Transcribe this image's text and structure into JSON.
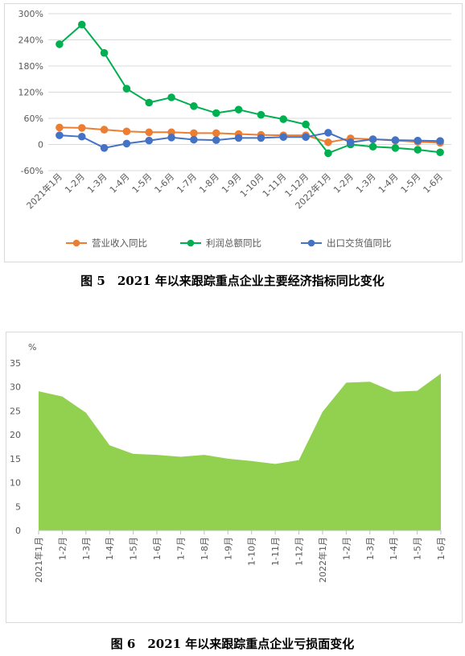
{
  "chart_data": [
    {
      "type": "line",
      "title": "",
      "caption": "图 5　2021 年以来跟踪重点企业主要经济指标同比变化",
      "categories": [
        "2021年1月",
        "1-2月",
        "1-3月",
        "1-4月",
        "1-5月",
        "1-6月",
        "1-7月",
        "1-8月",
        "1-9月",
        "1-10月",
        "1-11月",
        "1-12月",
        "2022年1月",
        "1-2月",
        "1-3月",
        "1-4月",
        "1-5月",
        "1-6月"
      ],
      "y_ticks": [
        "300%",
        "240%",
        "180%",
        "120%",
        "60%",
        "0",
        "-60%"
      ],
      "ylim": [
        -60,
        300
      ],
      "y_unit": "%",
      "grid": true,
      "legend_position": "bottom",
      "series": [
        {
          "name": "营业收入同比",
          "color": "#ED7D31",
          "values": [
            39,
            38,
            34,
            30,
            28,
            28,
            26,
            26,
            24,
            22,
            21,
            21,
            5,
            14,
            12,
            9,
            6,
            4
          ]
        },
        {
          "name": "利润总额同比",
          "color": "#00B050",
          "values": [
            230,
            275,
            210,
            128,
            96,
            108,
            88,
            72,
            80,
            68,
            58,
            46,
            -20,
            0,
            -5,
            -8,
            -12,
            -18
          ]
        },
        {
          "name": "出口交货值同比",
          "color": "#4472C4",
          "values": [
            21,
            18,
            -8,
            2,
            9,
            16,
            11,
            10,
            15,
            15,
            17,
            17,
            27,
            5,
            12,
            10,
            9,
            8
          ]
        }
      ]
    },
    {
      "type": "area",
      "title": "",
      "caption": "图 6　2021 年以来跟踪重点企业亏损面变化",
      "y_unit_label": "%",
      "categories": [
        "2021年1月",
        "1-2月",
        "1-3月",
        "1-4月",
        "1-5月",
        "1-6月",
        "1-7月",
        "1-8月",
        "1-9月",
        "1-10月",
        "1-11月",
        "1-12月",
        "2022年1月",
        "1-2月",
        "1-3月",
        "1-4月",
        "1-5月",
        "1-6月"
      ],
      "y_ticks": [
        "35",
        "30",
        "25",
        "20",
        "15",
        "10",
        "5",
        "0"
      ],
      "ylim": [
        0,
        35
      ],
      "grid": false,
      "color": "#92D050",
      "values": [
        29.1,
        28.0,
        24.6,
        17.8,
        16.0,
        15.8,
        15.4,
        15.8,
        15.0,
        14.5,
        13.9,
        14.7,
        24.8,
        30.9,
        31.1,
        29.0,
        29.2,
        32.8
      ]
    }
  ]
}
